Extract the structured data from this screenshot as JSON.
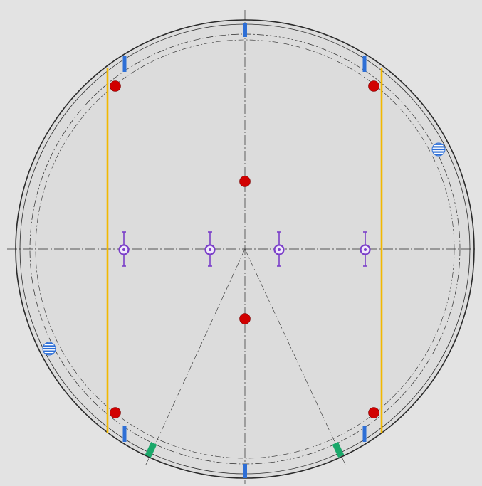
{
  "drawing": {
    "background": "#e3e3e3",
    "line_color": "#2a2a2a",
    "hole_color": "#3a3a3a",
    "colors": {
      "tie_rod_red": "#d10000",
      "sealing_strip_yellow": "#f2b800",
      "blue_marker": "#2e6fd6",
      "green_marker": "#1aa86a",
      "purple_marker": "#7a3ec9",
      "striped_circle": "#2e6fd6"
    },
    "layout_counts": {
      "tube_rows_pattern": "triangular"
    }
  }
}
